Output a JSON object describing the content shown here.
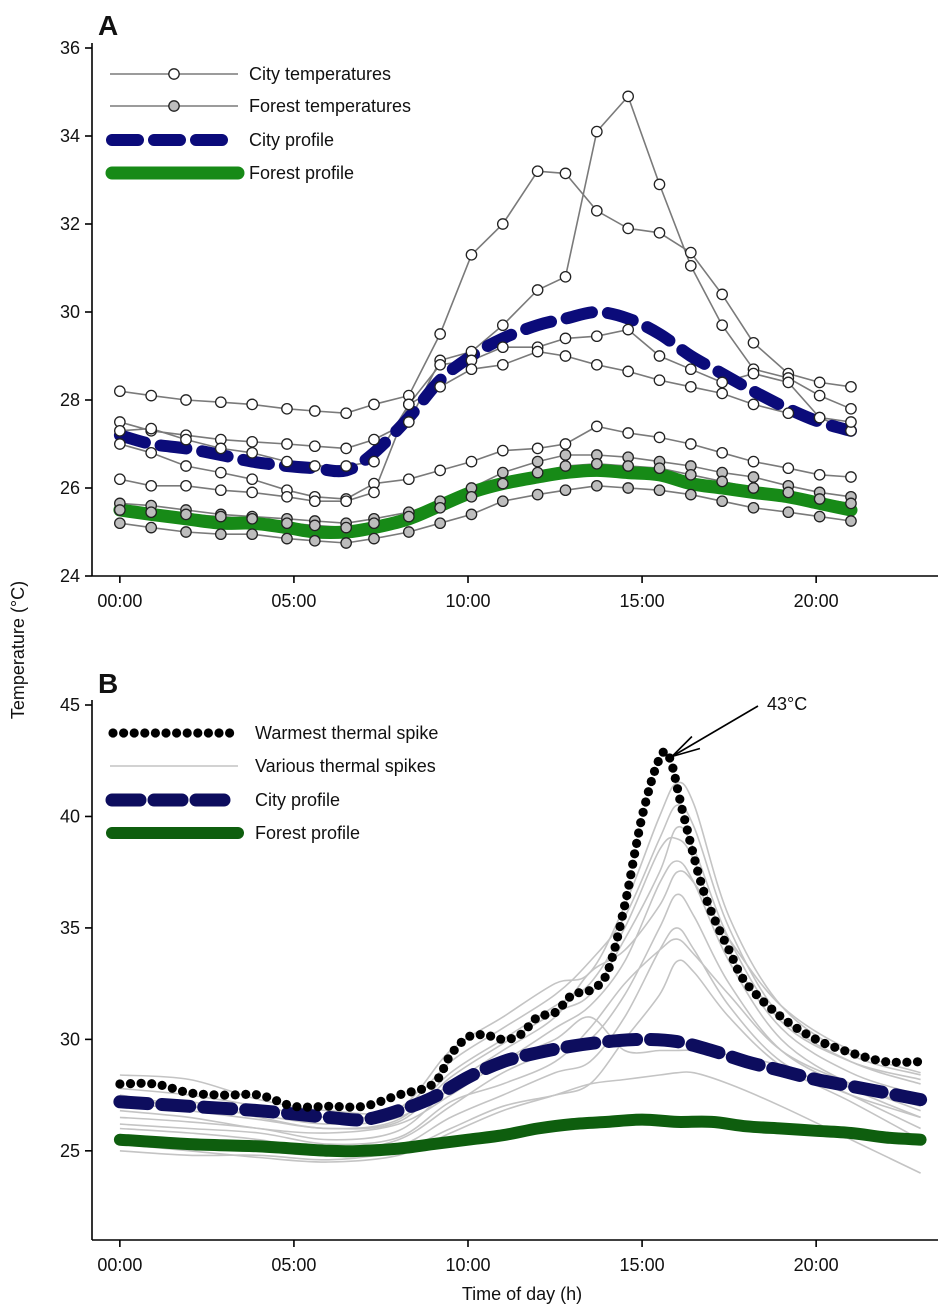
{
  "figure": {
    "ylabel": "Temperature (°C)",
    "xlabel": "Time of day (h)"
  },
  "chart_data": [
    {
      "panel": "A",
      "type": "line",
      "xlabel": "",
      "ylabel": "Temperature (°C)",
      "ylim": [
        24,
        36
      ],
      "yticks": [
        24,
        26,
        28,
        30,
        32,
        34,
        36
      ],
      "xlim": [
        -0.8,
        23.5
      ],
      "xticks": [
        0,
        5,
        10,
        15,
        20
      ],
      "xtick_labels": [
        "00:00",
        "05:00",
        "10:00",
        "15:00",
        "20:00"
      ],
      "x": [
        0,
        0.9,
        1.9,
        2.9,
        3.8,
        4.8,
        5.6,
        6.5,
        7.3,
        8.3,
        9.2,
        10.1,
        11,
        12,
        12.8,
        13.7,
        14.6,
        15.5,
        16.4,
        17.3,
        18.2,
        19.2,
        20.1,
        21
      ],
      "legend": [
        "City temperatures",
        "Forest temperatures",
        "City profile",
        "Forest profile"
      ],
      "city_series": [
        [
          28.2,
          28.1,
          28.0,
          27.95,
          27.9,
          27.8,
          27.75,
          27.7,
          27.9,
          28.1,
          29.5,
          31.3,
          32.0,
          33.2,
          33.15,
          32.3,
          31.9,
          31.8,
          31.35,
          30.4,
          29.3,
          28.6,
          28.4,
          28.3
        ],
        [
          27.5,
          27.3,
          27.2,
          27.1,
          27.05,
          27.0,
          26.95,
          26.9,
          27.1,
          27.5,
          28.9,
          29.1,
          29.7,
          30.5,
          30.8,
          34.1,
          34.9,
          32.9,
          31.05,
          29.7,
          28.7,
          28.5,
          28.1,
          27.8
        ],
        [
          27.3,
          27.35,
          27.1,
          26.9,
          26.8,
          26.6,
          26.5,
          26.5,
          26.6,
          27.9,
          28.8,
          28.9,
          29.2,
          29.2,
          29.4,
          29.45,
          29.6,
          29.0,
          28.7,
          28.4,
          28.6,
          28.4,
          27.6,
          27.3
        ],
        [
          27.0,
          26.8,
          26.5,
          26.35,
          26.2,
          25.95,
          25.8,
          25.75,
          26.1,
          26.2,
          26.4,
          26.6,
          26.85,
          26.9,
          27.0,
          27.4,
          27.25,
          27.15,
          27.0,
          26.8,
          26.6,
          26.45,
          26.3,
          26.25
        ],
        [
          26.2,
          26.05,
          26.05,
          25.95,
          25.9,
          25.8,
          25.7,
          25.7,
          25.9,
          27.9,
          28.3,
          28.7,
          28.8,
          29.1,
          29.0,
          28.8,
          28.65,
          28.45,
          28.3,
          28.15,
          27.9,
          27.7,
          27.6,
          27.5
        ]
      ],
      "forest_series": [
        [
          25.65,
          25.6,
          25.5,
          25.4,
          25.35,
          25.3,
          25.25,
          25.2,
          25.3,
          25.45,
          25.7,
          26.0,
          26.35,
          26.6,
          26.75,
          26.75,
          26.7,
          26.6,
          26.5,
          26.35,
          26.25,
          26.05,
          25.9,
          25.8
        ],
        [
          25.5,
          25.45,
          25.4,
          25.35,
          25.3,
          25.2,
          25.15,
          25.1,
          25.2,
          25.35,
          25.55,
          25.8,
          26.1,
          26.35,
          26.5,
          26.55,
          26.5,
          26.45,
          26.3,
          26.15,
          26.0,
          25.9,
          25.75,
          25.65
        ],
        [
          25.2,
          25.1,
          25.0,
          24.95,
          24.95,
          24.85,
          24.8,
          24.75,
          24.85,
          25.0,
          25.2,
          25.4,
          25.7,
          25.85,
          25.95,
          26.05,
          26.0,
          25.95,
          25.85,
          25.7,
          25.55,
          25.45,
          25.35,
          25.25
        ]
      ],
      "city_profile": [
        27.2,
        27.0,
        26.9,
        26.75,
        26.6,
        26.5,
        26.45,
        26.4,
        26.8,
        27.6,
        28.45,
        29.0,
        29.4,
        29.7,
        29.85,
        30.0,
        29.85,
        29.5,
        29.0,
        28.6,
        28.2,
        27.8,
        27.5,
        27.3
      ],
      "forest_profile": [
        25.5,
        25.4,
        25.3,
        25.2,
        25.2,
        25.1,
        25.0,
        25.0,
        25.1,
        25.3,
        25.6,
        25.9,
        26.1,
        26.25,
        26.35,
        26.4,
        26.35,
        26.3,
        26.1,
        26.0,
        25.9,
        25.8,
        25.65,
        25.5
      ],
      "colors": {
        "city_profile": "#0b0b7a",
        "forest_profile": "#178a17",
        "markers_line": "#7a7a7a",
        "forest_marker_fill": "#bdbdbd"
      }
    },
    {
      "panel": "B",
      "type": "line",
      "xlabel": "Time of day (h)",
      "ylabel": "Temperature (°C)",
      "ylim": [
        21,
        45
      ],
      "yticks": [
        25,
        30,
        35,
        40,
        45
      ],
      "xlim": [
        -0.8,
        23.5
      ],
      "xticks": [
        0,
        5,
        10,
        15,
        20
      ],
      "xtick_labels": [
        "00:00",
        "05:00",
        "10:00",
        "15:00",
        "20:00"
      ],
      "legend": [
        "Warmest thermal spike",
        "Various thermal spikes",
        "City profile",
        "Forest profile"
      ],
      "annotation": {
        "text": "43°C",
        "x": 15.8,
        "y": 42.6
      },
      "warmest_spike": {
        "x": [
          0,
          1,
          2,
          3,
          4,
          5,
          6,
          7,
          8,
          9,
          9.5,
          10,
          10.5,
          11,
          11.5,
          12,
          12.5,
          13,
          13.5,
          14,
          14.5,
          15,
          15.5,
          15.8,
          16.2,
          16.8,
          17.5,
          18,
          19,
          20,
          21,
          22,
          23
        ],
        "y": [
          28.0,
          28.0,
          27.6,
          27.5,
          27.5,
          27.0,
          27.0,
          27.0,
          27.5,
          28.0,
          29.3,
          30.1,
          30.2,
          30.0,
          30.2,
          31.0,
          31.2,
          32.0,
          32.2,
          33.0,
          36.0,
          40.0,
          42.6,
          42.6,
          40.0,
          36.5,
          34.0,
          32.5,
          31.0,
          30.0,
          29.4,
          29.0,
          29.0
        ]
      },
      "various_spikes": {
        "x": [
          0,
          2,
          4,
          6,
          8,
          9.5,
          11,
          12.5,
          13.5,
          14.5,
          15.5,
          16,
          16.5,
          17.5,
          19,
          21,
          23
        ],
        "series": [
          [
            28.4,
            28.2,
            27.3,
            26.8,
            26.9,
            29.5,
            31.0,
            32.5,
            33.0,
            36.0,
            40.0,
            41.5,
            40.5,
            35.5,
            31.5,
            29.3,
            28.4
          ],
          [
            27.8,
            27.5,
            27.0,
            26.5,
            26.8,
            29.0,
            30.5,
            32.0,
            33.5,
            35.5,
            39.0,
            40.5,
            39.5,
            35.0,
            31.0,
            29.0,
            28.0
          ],
          [
            27.0,
            27.2,
            26.5,
            26.0,
            26.4,
            28.5,
            30.0,
            31.5,
            32.5,
            35.0,
            38.5,
            39.0,
            38.0,
            34.0,
            30.5,
            28.5,
            27.5
          ],
          [
            26.5,
            26.3,
            26.0,
            25.5,
            25.9,
            27.8,
            29.0,
            30.5,
            31.5,
            33.5,
            37.0,
            38.0,
            37.0,
            33.5,
            30.0,
            28.0,
            27.0
          ],
          [
            26.0,
            25.8,
            25.5,
            25.0,
            25.5,
            27.0,
            28.5,
            29.5,
            30.0,
            32.0,
            35.0,
            36.5,
            35.5,
            32.5,
            29.5,
            27.8,
            26.5
          ],
          [
            25.5,
            25.3,
            25.0,
            24.8,
            25.2,
            26.5,
            27.5,
            28.5,
            29.0,
            31.0,
            34.0,
            35.0,
            34.0,
            31.5,
            29.0,
            27.5,
            26.0
          ],
          [
            25.0,
            24.8,
            24.8,
            24.6,
            25.0,
            26.0,
            27.0,
            27.5,
            28.0,
            30.0,
            32.0,
            33.5,
            33.0,
            31.0,
            28.8,
            27.2,
            25.5
          ],
          [
            27.5,
            27.0,
            26.6,
            26.2,
            26.5,
            28.0,
            29.5,
            31.0,
            33.0,
            34.0,
            36.0,
            37.5,
            37.0,
            34.5,
            31.5,
            29.5,
            28.5
          ],
          [
            26.8,
            26.5,
            26.0,
            25.8,
            26.2,
            27.5,
            29.0,
            30.0,
            31.0,
            29.5,
            29.5,
            29.5,
            29.5,
            29.3,
            28.8,
            27.5,
            26.5
          ],
          [
            25.3,
            25.0,
            24.7,
            24.5,
            24.8,
            25.8,
            26.8,
            27.5,
            28.0,
            28.2,
            28.4,
            28.5,
            28.5,
            28.0,
            27.0,
            25.5,
            24.0
          ],
          [
            26.2,
            26.0,
            25.8,
            25.3,
            25.6,
            27.2,
            28.0,
            29.0,
            30.5,
            32.5,
            34.0,
            34.5,
            33.8,
            32.0,
            29.5,
            28.0,
            26.8
          ],
          [
            27.2,
            26.8,
            26.4,
            26.0,
            26.3,
            28.3,
            29.8,
            31.2,
            32.0,
            34.5,
            37.5,
            39.5,
            38.5,
            34.5,
            30.8,
            29.0,
            28.2
          ]
        ]
      },
      "city_profile": {
        "x": [
          0,
          2,
          4,
          6,
          7,
          8,
          9,
          10,
          11,
          12,
          13,
          14,
          15,
          16,
          17,
          18,
          19,
          20,
          21,
          22,
          23
        ],
        "y": [
          27.2,
          27.0,
          26.8,
          26.5,
          26.4,
          26.8,
          27.4,
          28.3,
          29.0,
          29.4,
          29.7,
          29.9,
          30.0,
          29.9,
          29.5,
          29.0,
          28.6,
          28.2,
          27.9,
          27.6,
          27.3
        ]
      },
      "forest_profile": {
        "x": [
          0,
          2,
          4,
          6,
          7,
          8,
          9,
          10,
          11,
          12,
          13,
          14,
          15,
          16,
          17,
          18,
          19,
          20,
          21,
          22,
          23
        ],
        "y": [
          25.5,
          25.3,
          25.2,
          25.0,
          25.0,
          25.1,
          25.3,
          25.5,
          25.7,
          26.0,
          26.2,
          26.3,
          26.4,
          26.3,
          26.3,
          26.1,
          26.0,
          25.9,
          25.8,
          25.6,
          25.5
        ]
      },
      "colors": {
        "warmest_spike": "#000000",
        "various_spikes": "#c4c4c4",
        "city_profile": "#0d0d5e",
        "forest_profile": "#0e5e0e"
      }
    }
  ]
}
